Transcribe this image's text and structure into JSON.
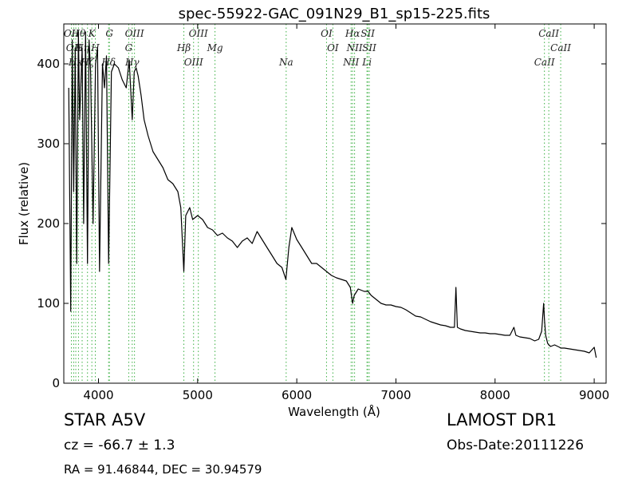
{
  "chart_data": {
    "type": "line",
    "title": "spec-55922-GAC_091N29_B1_sp15-225.fits",
    "xlabel": "Wavelength (Å)",
    "ylabel": "Flux (relative)",
    "xlim": [
      3650,
      9120
    ],
    "ylim": [
      0,
      450
    ],
    "xticks": [
      4000,
      5000,
      6000,
      7000,
      8000,
      9000
    ],
    "yticks": [
      0,
      100,
      200,
      300,
      400
    ],
    "grid": false,
    "series": [
      {
        "color": "#000000",
        "x": [
          3700,
          3720,
          3735,
          3750,
          3765,
          3780,
          3797,
          3810,
          3835,
          3850,
          3870,
          3889,
          3905,
          3920,
          3945,
          3970,
          3990,
          4010,
          4040,
          4060,
          4080,
          4102,
          4130,
          4160,
          4200,
          4240,
          4280,
          4310,
          4340,
          4360,
          4380,
          4400,
          4430,
          4460,
          4500,
          4550,
          4600,
          4650,
          4700,
          4750,
          4800,
          4830,
          4861,
          4880,
          4900,
          4920,
          4950,
          5000,
          5050,
          5100,
          5150,
          5200,
          5250,
          5300,
          5350,
          5400,
          5450,
          5500,
          5550,
          5600,
          5650,
          5700,
          5750,
          5800,
          5850,
          5890,
          5920,
          5950,
          6000,
          6050,
          6100,
          6150,
          6200,
          6250,
          6300,
          6350,
          6400,
          6450,
          6500,
          6540,
          6563,
          6580,
          6620,
          6680,
          6720,
          6750,
          6800,
          6850,
          6900,
          6950,
          7000,
          7050,
          7100,
          7150,
          7200,
          7250,
          7300,
          7350,
          7400,
          7450,
          7500,
          7550,
          7590,
          7605,
          7620,
          7650,
          7700,
          7750,
          7800,
          7850,
          7900,
          7950,
          8000,
          8050,
          8100,
          8150,
          8190,
          8210,
          8250,
          8300,
          8350,
          8400,
          8440,
          8470,
          8490,
          8498,
          8510,
          8530,
          8542,
          8560,
          8600,
          8650,
          8662,
          8700,
          8750,
          8800,
          8850,
          8900,
          8950,
          9000,
          9020
        ],
        "y": [
          370,
          90,
          430,
          240,
          420,
          150,
          440,
          330,
          420,
          200,
          440,
          150,
          430,
          390,
          200,
          400,
          420,
          140,
          400,
          370,
          410,
          150,
          390,
          400,
          395,
          380,
          370,
          405,
          330,
          390,
          395,
          385,
          360,
          330,
          310,
          290,
          280,
          270,
          255,
          250,
          240,
          220,
          140,
          210,
          215,
          220,
          205,
          210,
          205,
          195,
          192,
          185,
          188,
          182,
          178,
          170,
          178,
          182,
          175,
          190,
          180,
          170,
          160,
          150,
          145,
          130,
          170,
          195,
          180,
          170,
          160,
          150,
          150,
          145,
          140,
          135,
          132,
          130,
          128,
          120,
          100,
          110,
          118,
          115,
          115,
          110,
          105,
          100,
          98,
          98,
          96,
          95,
          92,
          88,
          84,
          83,
          80,
          77,
          75,
          73,
          72,
          70,
          70,
          120,
          70,
          68,
          66,
          65,
          64,
          63,
          63,
          62,
          62,
          61,
          60,
          60,
          70,
          60,
          58,
          57,
          56,
          53,
          55,
          65,
          100,
          80,
          60,
          50,
          48,
          46,
          48,
          45,
          44,
          44,
          43,
          42,
          41,
          40,
          38,
          45,
          32
        ]
      }
    ],
    "line_markers": [
      {
        "x": 3727,
        "label": "OII"
      },
      {
        "x": 3750,
        "label": "OII"
      },
      {
        "x": 3771,
        "label": "Hκ"
      },
      {
        "x": 3798,
        "label": "Hθ"
      },
      {
        "x": 3835,
        "label": "Hη"
      },
      {
        "x": 3889,
        "label": "Hζ"
      },
      {
        "x": 3933,
        "label": "K"
      },
      {
        "x": 3968,
        "label": "H"
      },
      {
        "x": 4102,
        "label": "Hδ"
      },
      {
        "x": 4110,
        "label": "G"
      },
      {
        "x": 4305,
        "label": "G"
      },
      {
        "x": 4340,
        "label": "Hγ"
      },
      {
        "x": 4363,
        "label": "OIII"
      },
      {
        "x": 4861,
        "label": "Hβ"
      },
      {
        "x": 4959,
        "label": "OIII"
      },
      {
        "x": 5007,
        "label": "OIII"
      },
      {
        "x": 5175,
        "label": "Mg"
      },
      {
        "x": 5893,
        "label": "Na"
      },
      {
        "x": 6300,
        "label": "OI"
      },
      {
        "x": 6364,
        "label": "OI"
      },
      {
        "x": 6548,
        "label": "NII"
      },
      {
        "x": 6563,
        "label": "Hα"
      },
      {
        "x": 6583,
        "label": "NII"
      },
      {
        "x": 6708,
        "label": "Li"
      },
      {
        "x": 6716,
        "label": "SII"
      },
      {
        "x": 6731,
        "label": "SII"
      },
      {
        "x": 8498,
        "label": "CaII"
      },
      {
        "x": 8542,
        "label": "CaII"
      },
      {
        "x": 8662,
        "label": "CaII"
      }
    ],
    "marker_color": "#3cb043"
  },
  "info": {
    "classification": "STAR   A5V",
    "survey": "LAMOST DR1",
    "redshift": "cz = -66.7  ± 1.3",
    "obs_date": "Obs-Date:20111226",
    "coords": "RA = 91.46844, DEC = 30.94579"
  }
}
